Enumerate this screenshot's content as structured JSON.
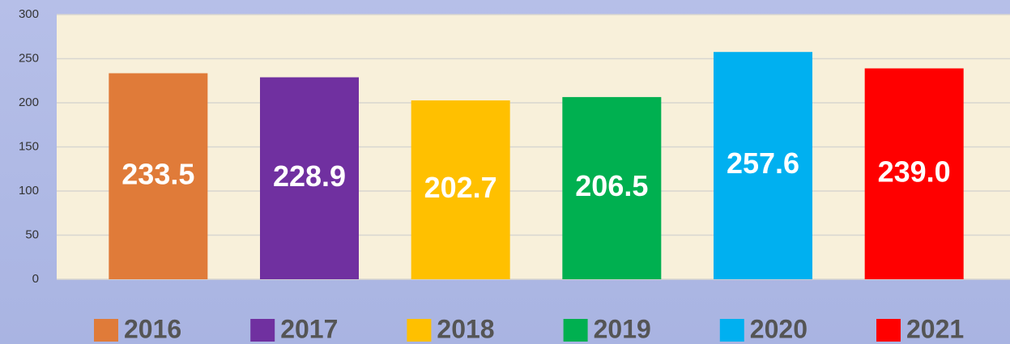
{
  "chart_data": {
    "type": "bar",
    "categories": [
      "2016",
      "2017",
      "2018",
      "2019",
      "2020",
      "2021"
    ],
    "values": [
      233.5,
      228.9,
      202.7,
      206.5,
      257.6,
      239
    ],
    "value_labels": [
      "233.5",
      "228.9",
      "202.7",
      "206.5",
      "257.6",
      "239.0"
    ],
    "colors": [
      "#e07b39",
      "#7030a0",
      "#ffc000",
      "#00b050",
      "#00b0f0",
      "#ff0000"
    ],
    "ylim": [
      0,
      300
    ],
    "yticks": [
      0,
      50,
      100,
      150,
      200,
      250,
      300
    ],
    "grid": true,
    "legend": "bottom"
  }
}
